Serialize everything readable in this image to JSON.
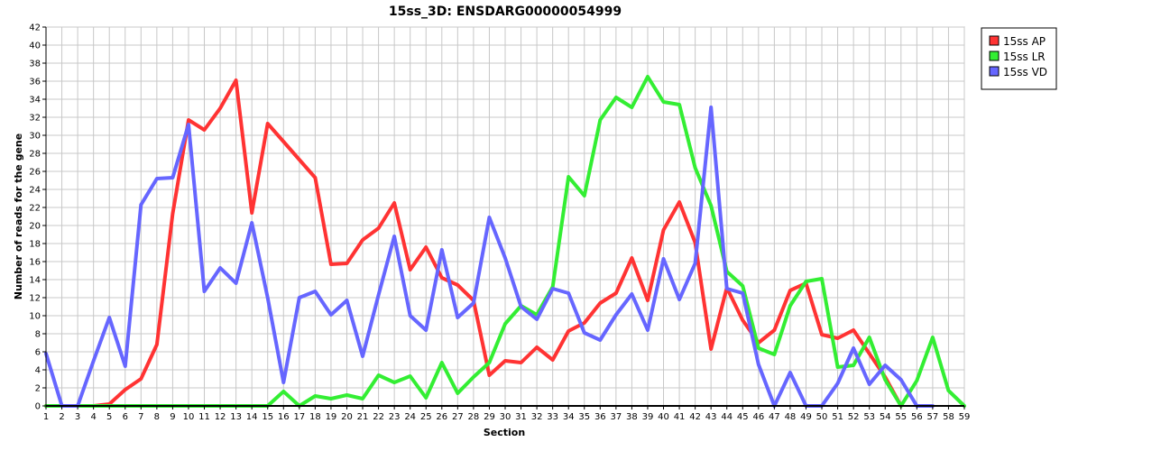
{
  "chart_data": {
    "type": "line",
    "title": "15ss_3D: ENSDARG00000054999",
    "xlabel": "Section",
    "ylabel": "Number of reads for the gene",
    "xlim": [
      1,
      59
    ],
    "ylim": [
      0,
      42
    ],
    "y_tick_step": 2,
    "grid": true,
    "legend_position": "top-right",
    "x": [
      1,
      2,
      3,
      4,
      5,
      6,
      7,
      8,
      9,
      10,
      11,
      12,
      13,
      14,
      15,
      16,
      17,
      18,
      19,
      20,
      21,
      22,
      23,
      24,
      25,
      26,
      27,
      28,
      29,
      30,
      31,
      32,
      33,
      34,
      35,
      36,
      37,
      38,
      39,
      40,
      41,
      42,
      43,
      44,
      45,
      46,
      47,
      48,
      49,
      50,
      51,
      52,
      53,
      54,
      55,
      56,
      57,
      58,
      59
    ],
    "series": [
      {
        "name": "15ss AP",
        "color": "#ff3333",
        "values": [
          0,
          0,
          0,
          0,
          0.2,
          1.8,
          3,
          6.8,
          21.3,
          31.7,
          30.6,
          33,
          36.1,
          21.4,
          31.3,
          29.3,
          27.3,
          25.3,
          15.7,
          15.8,
          18.4,
          19.7,
          22.5,
          15.1,
          17.6,
          14.2,
          13.4,
          11.7,
          3.4,
          5,
          4.8,
          6.5,
          5.1,
          8.3,
          9.2,
          11.4,
          12.5,
          16.4,
          11.7,
          19.5,
          22.6,
          18.1,
          6.3,
          13.1,
          9.5,
          7,
          8.4,
          12.8,
          13.6,
          7.9,
          7.5,
          8.4,
          5.8,
          3.2,
          0,
          null,
          null,
          null,
          null
        ]
      },
      {
        "name": "15ss LR",
        "color": "#33ee33",
        "values": [
          0,
          0,
          0,
          0,
          0,
          0,
          0,
          0,
          0,
          0,
          0,
          0,
          0,
          0,
          0,
          1.6,
          0,
          1.1,
          0.8,
          1.2,
          0.8,
          3.4,
          2.6,
          3.3,
          0.9,
          4.8,
          1.4,
          3.2,
          4.8,
          9.1,
          11.1,
          10.1,
          13.2,
          25.4,
          23.3,
          31.7,
          34.2,
          33.1,
          36.5,
          33.7,
          33.4,
          26.4,
          22.2,
          14.9,
          13.3,
          6.4,
          5.7,
          11.1,
          13.8,
          14.1,
          4.3,
          4.5,
          7.6,
          2.9,
          0,
          2.8,
          7.6,
          1.7,
          0
        ]
      },
      {
        "name": "15ss VD",
        "color": "#6666ff",
        "values": [
          5.8,
          0,
          0,
          5,
          9.8,
          4.4,
          22.3,
          25.2,
          25.3,
          31.2,
          12.7,
          15.3,
          13.6,
          20.3,
          12,
          2.6,
          12,
          12.7,
          10.1,
          11.7,
          5.5,
          12.3,
          18.8,
          10,
          8.4,
          17.3,
          9.8,
          11.4,
          20.9,
          16.4,
          11,
          9.6,
          13,
          12.5,
          8.1,
          7.3,
          10.1,
          12.4,
          8.4,
          16.3,
          11.8,
          15.8,
          33.1,
          13,
          12.5,
          4.6,
          0,
          3.7,
          0,
          0,
          2.5,
          6.4,
          2.4,
          4.5,
          2.9,
          0,
          0,
          null,
          null
        ]
      }
    ]
  }
}
